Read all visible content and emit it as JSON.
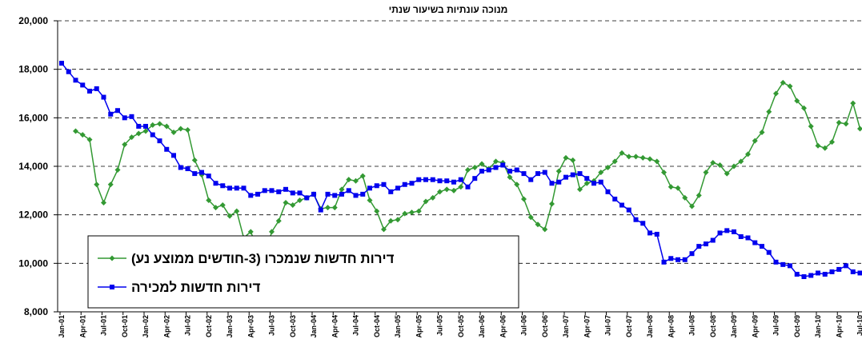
{
  "chart_data": {
    "type": "line",
    "subtitle": "מנוכה עונתיות בשיעור שנתי",
    "categories": [
      "Jan-01",
      null,
      null,
      "Apr-01",
      null,
      null,
      "Jul-01",
      null,
      null,
      "Oct-01",
      null,
      null,
      "Jan-02",
      null,
      null,
      "Apr-02",
      null,
      null,
      "Jul-02",
      null,
      null,
      "Oct-02",
      null,
      null,
      "Jan-03",
      null,
      null,
      "Apr-03",
      null,
      null,
      "Jul-03",
      null,
      null,
      "Oct-03",
      null,
      null,
      "Jan-04",
      null,
      null,
      "Apr-04",
      null,
      null,
      "Jul-04",
      null,
      null,
      "Oct-04",
      null,
      null,
      "Jan-05",
      null,
      null,
      "Apr-05",
      null,
      null,
      "Jul-05",
      null,
      null,
      "Oct-05",
      null,
      null,
      "Jan-06",
      null,
      null,
      "Apr-06",
      null,
      null,
      "Jul-06",
      null,
      null,
      "Oct-06",
      null,
      null,
      "Jan-07",
      null,
      null,
      "Apr-07",
      null,
      null,
      "Jul-07",
      null,
      null,
      "Oct-07",
      null,
      null,
      "Jan-08",
      null,
      null,
      "Apr-08",
      null,
      null,
      "Jul-08",
      null,
      null,
      "Oct-08",
      null,
      null,
      "Jan-09",
      null,
      null,
      "Apr-09",
      null,
      null,
      "Jul-09",
      null,
      null,
      "Oct-09",
      null,
      null,
      "Jan-10",
      null,
      null,
      "Apr-10",
      null,
      null,
      "Jul-10"
    ],
    "series": [
      {
        "name": "דירות חדשות שנמכרו (3-חודשים ממוצע נע)",
        "color": "#339933",
        "marker": "diamond",
        "values": [
          null,
          null,
          15450,
          15300,
          15100,
          13250,
          12500,
          13250,
          13850,
          14900,
          15200,
          15350,
          15450,
          15700,
          15750,
          15650,
          15400,
          15550,
          15500,
          14250,
          13650,
          12600,
          12300,
          12400,
          11950,
          12150,
          11050,
          11300,
          10600,
          10300,
          11300,
          11750,
          12500,
          12400,
          12600,
          12700,
          12850,
          12250,
          12300,
          12300,
          13050,
          13450,
          13400,
          13600,
          12600,
          12150,
          11400,
          11750,
          11800,
          12050,
          12100,
          12150,
          12550,
          12700,
          12950,
          13050,
          13000,
          13150,
          13850,
          13950,
          14100,
          13900,
          14200,
          14150,
          13550,
          13250,
          12650,
          11900,
          11600,
          11400,
          12450,
          13800,
          14350,
          14250,
          13050,
          13300,
          13400,
          13750,
          13950,
          14200,
          14550,
          14400,
          14400,
          14350,
          14300,
          14200,
          13750,
          13150,
          13100,
          12700,
          12350,
          12800,
          13750,
          14150,
          14050,
          13700,
          14000,
          14200,
          14500,
          15050,
          15400,
          16250,
          17000,
          17450,
          17300,
          16700,
          16400,
          15650,
          14850,
          14750,
          15000,
          15800,
          15750,
          16600,
          15550
        ]
      },
      {
        "name": "דירות חדשות למכירה",
        "color": "#0000ee",
        "marker": "square",
        "values": [
          18250,
          17900,
          17550,
          17350,
          17100,
          17200,
          16850,
          16150,
          16300,
          16000,
          16050,
          15650,
          15650,
          15300,
          15050,
          14700,
          14450,
          13950,
          13900,
          13700,
          13750,
          13600,
          13300,
          13200,
          13100,
          13100,
          13100,
          12800,
          12850,
          13000,
          13000,
          12950,
          13050,
          12900,
          12900,
          12700,
          12850,
          12200,
          12850,
          12800,
          12850,
          13000,
          12800,
          12850,
          13100,
          13200,
          13250,
          12950,
          13100,
          13250,
          13300,
          13450,
          13450,
          13450,
          13400,
          13400,
          13350,
          13450,
          13150,
          13500,
          13800,
          13850,
          13950,
          14050,
          13800,
          13850,
          13700,
          13450,
          13700,
          13750,
          13300,
          13350,
          13550,
          13650,
          13700,
          13500,
          13300,
          13350,
          12950,
          12650,
          12400,
          12200,
          11800,
          11650,
          11250,
          11200,
          10050,
          10200,
          10150,
          10150,
          10400,
          10700,
          10800,
          10950,
          11250,
          11350,
          11300,
          11100,
          11050,
          10850,
          10700,
          10450,
          10050,
          9950,
          9900,
          9550,
          9450,
          9500,
          9600,
          9550,
          9650,
          9750,
          9900,
          9650,
          9600
        ]
      }
    ],
    "ylim": [
      8000,
      20000
    ],
    "yticks": [
      {
        "value": 8000,
        "label": "8,000"
      },
      {
        "value": 10000,
        "label": "10,000"
      },
      {
        "value": 12000,
        "label": "12,000"
      },
      {
        "value": 14000,
        "label": "14,000"
      },
      {
        "value": 16000,
        "label": "16,000"
      },
      {
        "value": 18000,
        "label": "18,000"
      },
      {
        "value": 20000,
        "label": "20,000"
      }
    ],
    "grid": true,
    "legend": "lower left"
  }
}
